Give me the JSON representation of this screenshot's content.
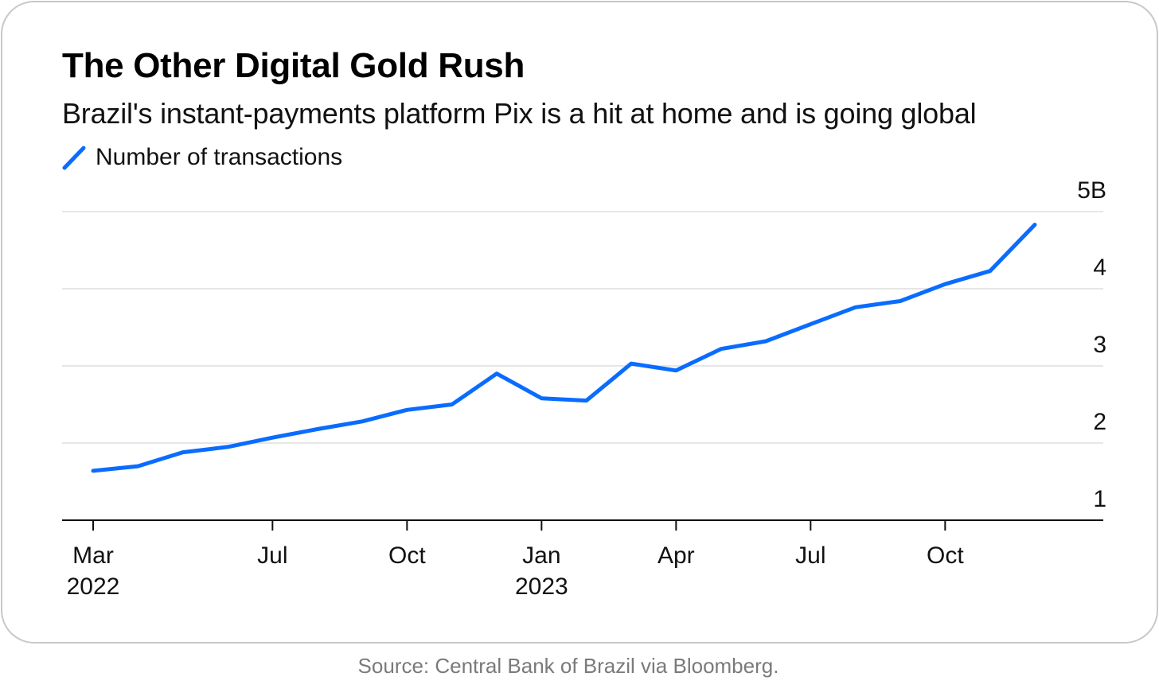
{
  "title": "The Other Digital Gold Rush",
  "subtitle": "Brazil's instant-payments platform Pix is a hit at home and is going global",
  "legend_label": "Number of transactions",
  "source": "Source: Central Bank of Brazil via Bloomberg.",
  "colors": {
    "line": "#0a6cff",
    "grid": "#e6e6e6",
    "axis": "#111111",
    "card_border": "#c8c8c8"
  },
  "chart_data": {
    "type": "line",
    "title": "The Other Digital Gold Rush",
    "subtitle": "Brazil's instant-payments platform Pix is a hit at home and is going global",
    "xlabel": "",
    "ylabel": "",
    "ylim": [
      1,
      5
    ],
    "yticks": [
      1,
      2,
      3,
      4,
      5
    ],
    "ytick_labels": [
      "1",
      "2",
      "3",
      "4",
      "5B"
    ],
    "y_axis_side": "right",
    "grid": true,
    "legend_placement": "top-left",
    "xticks": [
      {
        "month": "2022-03",
        "label": "Mar",
        "sublabel": "2022"
      },
      {
        "month": "2022-07",
        "label": "Jul",
        "sublabel": ""
      },
      {
        "month": "2022-10",
        "label": "Oct",
        "sublabel": ""
      },
      {
        "month": "2023-01",
        "label": "Jan",
        "sublabel": "2023"
      },
      {
        "month": "2023-04",
        "label": "Apr",
        "sublabel": ""
      },
      {
        "month": "2023-07",
        "label": "Jul",
        "sublabel": ""
      },
      {
        "month": "2023-10",
        "label": "Oct",
        "sublabel": ""
      }
    ],
    "x_range": [
      "2022-03",
      "2024-01"
    ],
    "series": [
      {
        "name": "Number of transactions",
        "x": [
          "2022-03",
          "2022-04",
          "2022-05",
          "2022-06",
          "2022-07",
          "2022-08",
          "2022-09",
          "2022-10",
          "2022-11",
          "2022-12",
          "2023-01",
          "2023-02",
          "2023-03",
          "2023-04",
          "2023-05",
          "2023-06",
          "2023-07",
          "2023-08",
          "2023-09",
          "2023-10",
          "2023-11",
          "2023-12"
        ],
        "values": [
          1.64,
          1.7,
          1.88,
          1.95,
          2.07,
          2.18,
          2.28,
          2.43,
          2.5,
          2.9,
          2.58,
          2.55,
          3.03,
          2.94,
          3.22,
          3.32,
          3.54,
          3.76,
          3.84,
          4.06,
          4.23,
          4.83
        ]
      }
    ]
  }
}
